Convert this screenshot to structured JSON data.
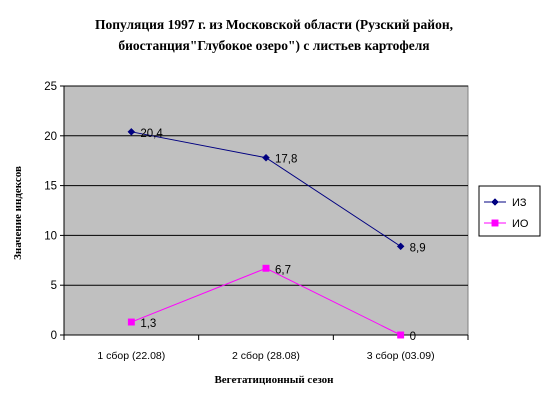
{
  "chart_data": {
    "type": "line",
    "title": "Популяция 1997 г. из Московской области (Рузский район,",
    "subtitle": "биостанция\"Глубокое озеро\") с листьев картофеля",
    "xlabel": "Вегетатиционный сезон",
    "ylabel": "Значение индексов",
    "categories": [
      "1 сбор (22.08)",
      "2 сбор (28.08)",
      "3 сбор (03.09)"
    ],
    "ylim": [
      0,
      25
    ],
    "yticks": [
      0,
      5,
      10,
      15,
      20,
      25
    ],
    "grid": true,
    "legend_position": "right",
    "series": [
      {
        "name": "ИЗ",
        "values": [
          20.4,
          17.8,
          8.9
        ],
        "labels": [
          "20,4",
          "17,8",
          "8,9"
        ],
        "color": "#000080",
        "marker": "diamond"
      },
      {
        "name": "ИО",
        "values": [
          1.3,
          6.7,
          0
        ],
        "labels": [
          "1,3",
          "6,7",
          "0"
        ],
        "color": "#ff00ff",
        "marker": "square"
      }
    ],
    "plot_background": "#c0c0c0"
  }
}
